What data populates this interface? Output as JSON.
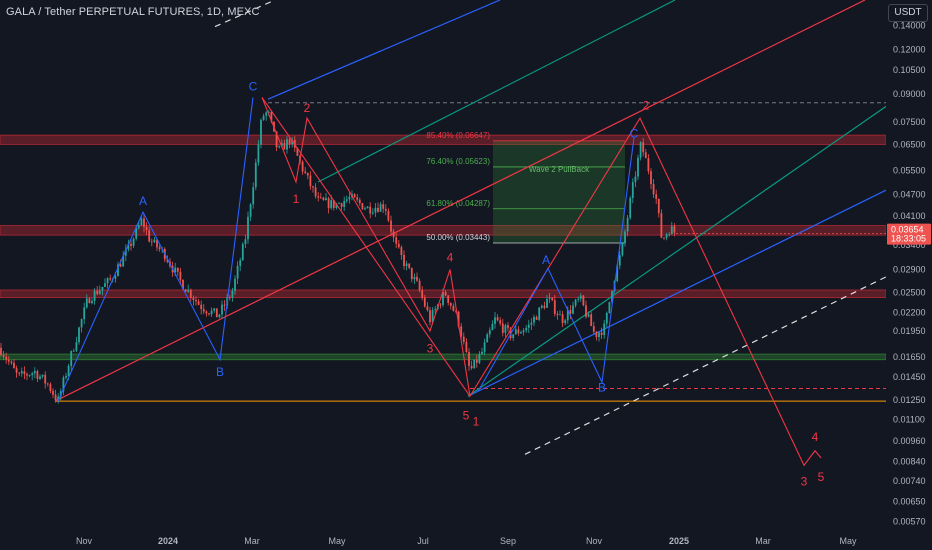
{
  "header": {
    "title": "GALA / Tether PERPETUAL FUTURES, 1D, MEXC",
    "unit": "USDT"
  },
  "chart_data": {
    "type": "candlestick",
    "title": "GALA / Tether PERPETUAL FUTURES, 1D, MEXC",
    "y_scale": "log",
    "ylim": [
      0.0054,
      0.165
    ],
    "y_ticks": [
      "0.14000",
      "0.12000",
      "0.10500",
      "0.09000",
      "0.07500",
      "0.06500",
      "0.05500",
      "0.04700",
      "0.04100",
      "0.03400",
      "0.02900",
      "0.02500",
      "0.02200",
      "0.01950",
      "0.01650",
      "0.01450",
      "0.01250",
      "0.01100",
      "0.00960",
      "0.00840",
      "0.00740",
      "0.00650",
      "0.00570"
    ],
    "x_ticks": [
      "Nov",
      "2024",
      "Mar",
      "May",
      "Jul",
      "Sep",
      "Nov",
      "2025",
      "Mar",
      "May"
    ],
    "current_price": {
      "value": "0.03654",
      "countdown": "18:33:05",
      "level": 0.03654
    },
    "price_path": [
      [
        0,
        0.0175
      ],
      [
        18,
        0.0145
      ],
      [
        35,
        0.015
      ],
      [
        48,
        0.0138
      ],
      [
        58,
        0.0124
      ],
      [
        72,
        0.017
      ],
      [
        88,
        0.024
      ],
      [
        110,
        0.027
      ],
      [
        128,
        0.033
      ],
      [
        142,
        0.04
      ],
      [
        150,
        0.035
      ],
      [
        165,
        0.032
      ],
      [
        180,
        0.027
      ],
      [
        200,
        0.023
      ],
      [
        218,
        0.0215
      ],
      [
        232,
        0.025
      ],
      [
        245,
        0.035
      ],
      [
        255,
        0.055
      ],
      [
        262,
        0.078
      ],
      [
        268,
        0.08
      ],
      [
        278,
        0.062
      ],
      [
        290,
        0.067
      ],
      [
        302,
        0.056
      ],
      [
        318,
        0.045
      ],
      [
        335,
        0.044
      ],
      [
        350,
        0.046
      ],
      [
        368,
        0.043
      ],
      [
        385,
        0.044
      ],
      [
        395,
        0.034
      ],
      [
        405,
        0.03
      ],
      [
        418,
        0.026
      ],
      [
        430,
        0.021
      ],
      [
        445,
        0.025
      ],
      [
        458,
        0.021
      ],
      [
        470,
        0.015
      ],
      [
        482,
        0.017
      ],
      [
        495,
        0.021
      ],
      [
        510,
        0.019
      ],
      [
        528,
        0.02
      ],
      [
        548,
        0.024
      ],
      [
        562,
        0.021
      ],
      [
        580,
        0.024
      ],
      [
        595,
        0.019
      ],
      [
        605,
        0.02
      ],
      [
        612,
        0.026
      ],
      [
        622,
        0.033
      ],
      [
        632,
        0.048
      ],
      [
        641,
        0.065
      ],
      [
        648,
        0.056
      ],
      [
        656,
        0.046
      ],
      [
        662,
        0.035
      ],
      [
        670,
        0.038
      ],
      [
        676,
        0.0365
      ]
    ],
    "horizontal_zones": [
      {
        "name": "resistance",
        "from": 0.065,
        "to": 0.069,
        "color": "#b22833"
      },
      {
        "name": "resistance",
        "from": 0.0362,
        "to": 0.0385,
        "color": "#b22833"
      },
      {
        "name": "resistance",
        "from": 0.0242,
        "to": 0.0254,
        "color": "#b22833"
      },
      {
        "name": "support",
        "from": 0.0162,
        "to": 0.0168,
        "color": "#2e7d32"
      }
    ],
    "horizontal_lines": [
      {
        "level": 0.085,
        "style": "dashed",
        "color": "#787b86"
      },
      {
        "level": 0.01345,
        "style": "dashed",
        "color": "#f23645"
      },
      {
        "level": 0.0124,
        "style": "solid",
        "color": "#ff9800"
      }
    ],
    "wave_labels": [
      {
        "text": "A",
        "x": 143,
        "price": 0.044,
        "color": "#2962ff"
      },
      {
        "text": "B",
        "x": 220,
        "price": 0.0146,
        "color": "#2962ff"
      },
      {
        "text": "C",
        "x": 253,
        "price": 0.092,
        "color": "#2962ff"
      },
      {
        "text": "2",
        "x": 307,
        "price": 0.08,
        "color": "#f23645"
      },
      {
        "text": "1",
        "x": 296,
        "price": 0.0445,
        "color": "#f23645"
      },
      {
        "text": "4",
        "x": 450,
        "price": 0.0305,
        "color": "#f23645"
      },
      {
        "text": "3",
        "x": 430,
        "price": 0.017,
        "color": "#f23645"
      },
      {
        "text": "5",
        "x": 466,
        "price": 0.011,
        "color": "#f23645"
      },
      {
        "text": "1",
        "x": 476,
        "price": 0.0106,
        "color": "#f23645"
      },
      {
        "text": "A",
        "x": 546,
        "price": 0.03,
        "color": "#2962ff"
      },
      {
        "text": "B",
        "x": 602,
        "price": 0.0132,
        "color": "#2962ff"
      },
      {
        "text": "C",
        "x": 634,
        "price": 0.068,
        "color": "#2962ff"
      },
      {
        "text": "2",
        "x": 646,
        "price": 0.0815,
        "color": "#f23645"
      },
      {
        "text": "4",
        "x": 815,
        "price": 0.0096,
        "color": "#f23645"
      },
      {
        "text": "3",
        "x": 804,
        "price": 0.0072,
        "color": "#f23645"
      },
      {
        "text": "5",
        "x": 821,
        "price": 0.0074,
        "color": "#f23645"
      }
    ],
    "fib_box": {
      "label": "Wave 2 PullBack",
      "top": 0.0665,
      "bottom": 0.0344,
      "levels": [
        {
          "text": "85.40% (0.06647)",
          "price": 0.0665
        },
        {
          "text": "76.40% (0.05623)",
          "price": 0.0562
        },
        {
          "text": "61.80% (0.04287)",
          "price": 0.0429
        },
        {
          "text": "50.00% (0.03443)",
          "price": 0.0344
        }
      ]
    },
    "channels": [
      {
        "color": "#2962ff",
        "lines": [
          [
            [
              268,
              0.087
            ],
            [
              500,
              0.165
            ]
          ],
          [
            [
              468,
              0.0128
            ],
            [
              932,
              0.056
            ]
          ]
        ]
      },
      {
        "color": "#089981",
        "lines": [
          [
            [
              318,
              0.051
            ],
            [
              675,
              0.165
            ]
          ],
          [
            [
              468,
              0.0128
            ],
            [
              932,
              0.102
            ]
          ]
        ]
      },
      {
        "color": "#f23645",
        "lines": [
          [
            [
              55,
              0.0124
            ],
            [
              865,
              0.165
            ]
          ]
        ]
      },
      {
        "color": "#ffffff",
        "dashed": true,
        "lines": [
          [
            [
              215,
              0.139
            ],
            [
              275,
              0.165
            ]
          ],
          [
            [
              525,
              0.0088
            ],
            [
              890,
              0.028
            ]
          ]
        ]
      }
    ],
    "wave_paths": [
      {
        "color": "#2962ff",
        "points": [
          [
            58,
            0.0124
          ],
          [
            143,
            0.042
          ],
          [
            220,
            0.0162
          ],
          [
            253,
            0.088
          ]
        ]
      },
      {
        "color": "#f23645",
        "points": [
          [
            262,
            0.088
          ],
          [
            296,
            0.051
          ],
          [
            307,
            0.077
          ],
          [
            430,
            0.0195
          ],
          [
            450,
            0.029
          ],
          [
            470,
            0.0128
          ],
          [
            640,
            0.077
          ],
          [
            804,
            0.0082
          ],
          [
            815,
            0.009
          ],
          [
            821,
            0.0086
          ]
        ]
      },
      {
        "color": "#f23645",
        "points": [
          [
            262,
            0.088
          ],
          [
            470,
            0.0128
          ]
        ]
      },
      {
        "color": "#2962ff",
        "points": [
          [
            478,
            0.0132
          ],
          [
            548,
            0.0292
          ],
          [
            602,
            0.014
          ],
          [
            634,
            0.068
          ]
        ]
      }
    ]
  }
}
